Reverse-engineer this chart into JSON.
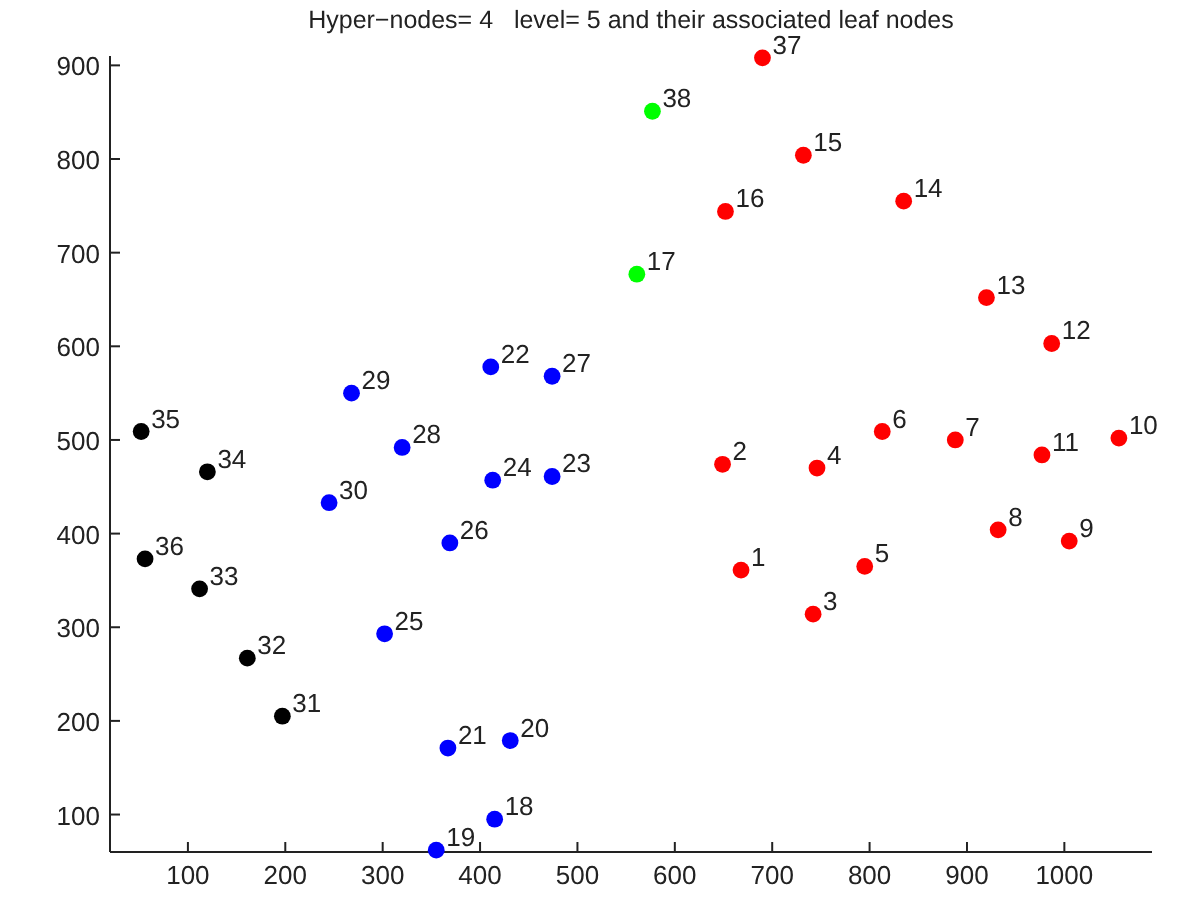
{
  "chart_data": {
    "type": "scatter",
    "title": "Hyper−nodes= 4   level= 5 and their associated leaf nodes",
    "xlim": [
      20,
      1090
    ],
    "ylim": [
      60,
      910
    ],
    "xticks": [
      100,
      200,
      300,
      400,
      500,
      600,
      700,
      800,
      900,
      1000
    ],
    "yticks": [
      100,
      200,
      300,
      400,
      500,
      600,
      700,
      800,
      900
    ],
    "marker": "circle",
    "grid": false,
    "series": [
      {
        "color": "#ff0000",
        "x": [
          668,
          649,
          742,
          746,
          795,
          813,
          888,
          932,
          1005,
          1056,
          977,
          987,
          920,
          835,
          732,
          652,
          690
        ],
        "values": [
          361,
          474,
          314,
          470,
          365,
          509,
          500,
          404,
          392,
          502,
          484,
          603,
          652,
          755,
          804,
          744,
          908
        ]
      },
      {
        "color": "#00ff00",
        "x": [
          577,
          561
        ],
        "values": [
          851,
          677
        ]
      },
      {
        "color": "#0000ff",
        "x": [
          415,
          355,
          431,
          367,
          411,
          474,
          413,
          302,
          369,
          268,
          320,
          474,
          245
        ],
        "values": [
          95,
          62,
          179,
          171,
          578,
          461,
          457,
          293,
          390,
          550,
          492,
          568,
          433
        ]
      },
      {
        "color": "#000000",
        "x": [
          197,
          161,
          112,
          120,
          52,
          56
        ],
        "values": [
          205,
          267,
          341,
          466,
          509,
          373
        ]
      }
    ],
    "annotations": [
      {
        "text": "1",
        "x": 668,
        "y": 361
      },
      {
        "text": "2",
        "x": 649,
        "y": 474
      },
      {
        "text": "3",
        "x": 742,
        "y": 314
      },
      {
        "text": "4",
        "x": 746,
        "y": 470
      },
      {
        "text": "5",
        "x": 795,
        "y": 365
      },
      {
        "text": "6",
        "x": 813,
        "y": 509
      },
      {
        "text": "7",
        "x": 888,
        "y": 500
      },
      {
        "text": "8",
        "x": 932,
        "y": 404
      },
      {
        "text": "9",
        "x": 1005,
        "y": 392
      },
      {
        "text": "10",
        "x": 1056,
        "y": 502
      },
      {
        "text": "11",
        "x": 977,
        "y": 484
      },
      {
        "text": "12",
        "x": 987,
        "y": 603
      },
      {
        "text": "13",
        "x": 920,
        "y": 652
      },
      {
        "text": "14",
        "x": 835,
        "y": 755
      },
      {
        "text": "15",
        "x": 732,
        "y": 804
      },
      {
        "text": "16",
        "x": 652,
        "y": 744
      },
      {
        "text": "17",
        "x": 561,
        "y": 677
      },
      {
        "text": "18",
        "x": 415,
        "y": 95
      },
      {
        "text": "19",
        "x": 355,
        "y": 62
      },
      {
        "text": "20",
        "x": 431,
        "y": 179
      },
      {
        "text": "21",
        "x": 367,
        "y": 171
      },
      {
        "text": "22",
        "x": 411,
        "y": 578
      },
      {
        "text": "23",
        "x": 474,
        "y": 461
      },
      {
        "text": "24",
        "x": 413,
        "y": 457
      },
      {
        "text": "25",
        "x": 302,
        "y": 293
      },
      {
        "text": "26",
        "x": 369,
        "y": 390
      },
      {
        "text": "27",
        "x": 474,
        "y": 568
      },
      {
        "text": "28",
        "x": 320,
        "y": 492
      },
      {
        "text": "29",
        "x": 268,
        "y": 550
      },
      {
        "text": "30",
        "x": 245,
        "y": 433
      },
      {
        "text": "31",
        "x": 197,
        "y": 205
      },
      {
        "text": "32",
        "x": 161,
        "y": 267
      },
      {
        "text": "33",
        "x": 112,
        "y": 341
      },
      {
        "text": "34",
        "x": 120,
        "y": 466
      },
      {
        "text": "35",
        "x": 52,
        "y": 509
      },
      {
        "text": "36",
        "x": 56,
        "y": 373
      },
      {
        "text": "37",
        "x": 690,
        "y": 908
      },
      {
        "text": "38",
        "x": 577,
        "y": 851
      }
    ]
  }
}
